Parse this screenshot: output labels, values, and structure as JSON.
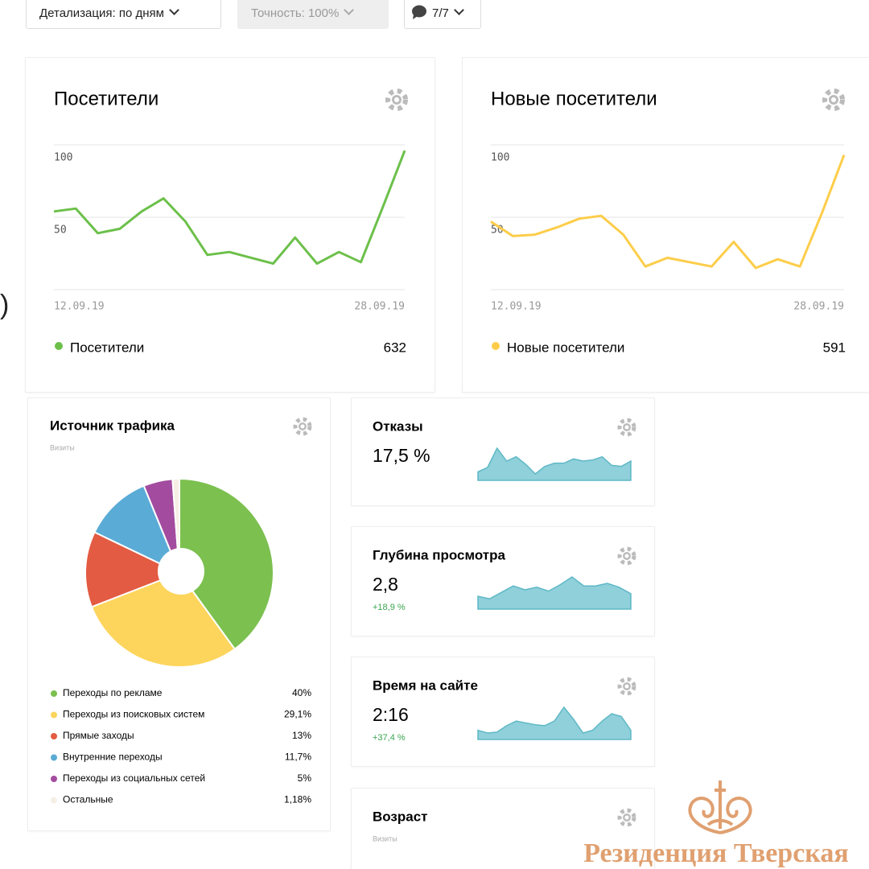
{
  "toolbar": {
    "buttons": [
      "Детализация: по дням",
      "Точность: 100%",
      "7/7"
    ]
  },
  "fragment": ")",
  "chart_data": [
    {
      "type": "line",
      "title": "Посетители",
      "categories": [
        "12.09.19",
        null,
        null,
        null,
        null,
        null,
        null,
        null,
        null,
        null,
        null,
        null,
        null,
        null,
        null,
        null,
        "28.09.19"
      ],
      "series": [
        {
          "name": "Посетители",
          "color": "#6cc04a",
          "total": 632,
          "values": [
            54,
            56,
            39,
            42,
            54,
            63,
            47,
            24,
            26,
            22,
            18,
            36,
            18,
            26,
            19,
            57,
            96
          ]
        }
      ],
      "ylim": [
        0,
        100
      ],
      "yticks": [
        50,
        100
      ],
      "grid": true
    },
    {
      "type": "line",
      "title": "Новые посетители",
      "categories": [
        "12.09.19",
        null,
        null,
        null,
        null,
        null,
        null,
        null,
        null,
        null,
        null,
        null,
        null,
        null,
        null,
        null,
        "28.09.19"
      ],
      "series": [
        {
          "name": "Новые посетители",
          "color": "#fdcd4a",
          "total": 591,
          "values": [
            47,
            37,
            38,
            43,
            49,
            51,
            38,
            16,
            22,
            19,
            16,
            33,
            15,
            21,
            16,
            53,
            93
          ]
        }
      ],
      "ylim": [
        0,
        100
      ],
      "yticks": [
        50,
        100
      ],
      "grid": true
    },
    {
      "type": "pie",
      "title": "Источник трафика",
      "subtitle": "Визиты",
      "categories": [
        "Переходы по рекламе",
        "Переходы из поисковых систем",
        "Прямые заходы",
        "Внутренние переходы",
        "Переходы из социальных сетей",
        "Остальные"
      ],
      "values": [
        40,
        29.1,
        13,
        11.7,
        5,
        1.18
      ],
      "value_labels": [
        "40%",
        "29,1%",
        "13%",
        "11,7%",
        "5%",
        "1,18%"
      ],
      "colors": [
        "#7cc04f",
        "#fdd55c",
        "#e35b42",
        "#5aabd6",
        "#a34c9f",
        "#f6efe4"
      ]
    },
    {
      "type": "area",
      "title": "Отказы",
      "value_text": "17,5 %",
      "color": "#8fd0da",
      "values": [
        8,
        12,
        30,
        18,
        22,
        15,
        6,
        13,
        16,
        16,
        20,
        18,
        19,
        22,
        14,
        13,
        18
      ]
    },
    {
      "type": "area",
      "title": "Глубина просмотра",
      "value_text": "2,8",
      "change": "+18,9 %",
      "color": "#8fd0da",
      "values": [
        10,
        8,
        13,
        18,
        15,
        17,
        14,
        19,
        25,
        18,
        18,
        20,
        17,
        12
      ]
    },
    {
      "type": "area",
      "title": "Время на сайте",
      "value_text": "2:16",
      "change": "+37,4 %",
      "color": "#8fd0da",
      "values": [
        10,
        7,
        8,
        15,
        20,
        18,
        16,
        15,
        20,
        35,
        22,
        7,
        10,
        20,
        28,
        25,
        10
      ]
    }
  ],
  "age_widget": {
    "title": "Возраст",
    "subtitle": "Визиты"
  },
  "watermark": "Резиденция Тверская"
}
